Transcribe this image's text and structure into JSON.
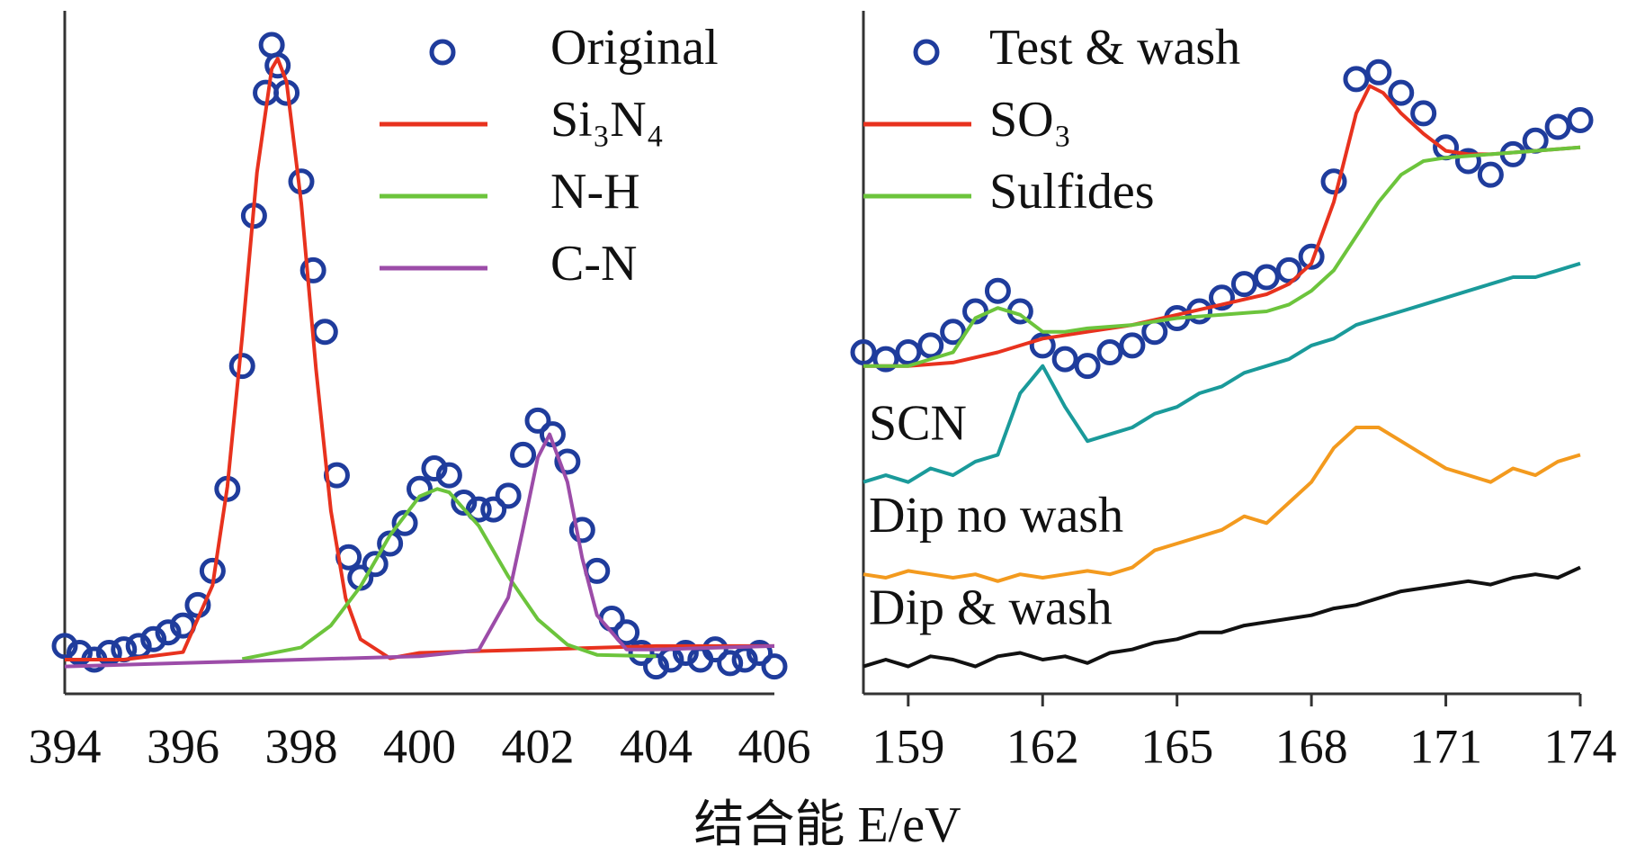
{
  "xlabel": "结合能 E/eV",
  "chart_data": [
    {
      "type": "line",
      "xlim": [
        394,
        406
      ],
      "xticks": [
        394,
        396,
        398,
        400,
        402,
        404,
        406
      ],
      "ylim": [
        0,
        100
      ],
      "grid": false,
      "tick_marks": false,
      "legend": "upper right",
      "series": [
        {
          "name": "Original",
          "color": "#1f3c9c",
          "marker": "circle",
          "x": [
            394,
            394.25,
            394.5,
            394.75,
            395,
            395.25,
            395.5,
            395.75,
            396,
            396.25,
            396.5,
            396.75,
            397,
            397.2,
            397.4,
            397.5,
            397.6,
            397.75,
            398,
            398.2,
            398.4,
            398.6,
            398.8,
            399,
            399.25,
            399.5,
            399.75,
            400,
            400.25,
            400.5,
            400.75,
            401,
            401.25,
            401.5,
            401.75,
            402,
            402.25,
            402.5,
            402.75,
            403,
            403.25,
            403.5,
            403.75,
            404,
            404.25,
            404.5,
            404.75,
            405,
            405.25,
            405.5,
            405.75,
            406
          ],
          "values": [
            7,
            6,
            5,
            6,
            6.5,
            7,
            8,
            9,
            10,
            13,
            18,
            30,
            48,
            70,
            88,
            95,
            92,
            88,
            75,
            62,
            53,
            32,
            20,
            17,
            19,
            22,
            25,
            30,
            33,
            32,
            28,
            27,
            27,
            29,
            35,
            40,
            38,
            34,
            24,
            18,
            11,
            9,
            6,
            4,
            5,
            6,
            5,
            6.5,
            4.5,
            5,
            6,
            4
          ]
        },
        {
          "name": "Si₃N₄",
          "color": "#e8321e",
          "x": [
            394,
            395,
            396,
            396.5,
            396.75,
            397,
            397.25,
            397.5,
            397.6,
            397.75,
            398,
            398.25,
            398.5,
            398.75,
            399,
            399.5,
            400,
            402,
            404,
            406
          ],
          "values": [
            5,
            5,
            6.1,
            15.9,
            30.3,
            52.3,
            76.3,
            91.5,
            93,
            89.6,
            71.8,
            47.5,
            26.8,
            14,
            8,
            5.2,
            6,
            6.5,
            7,
            7
          ]
        },
        {
          "name": "N-H",
          "color": "#6cc43c",
          "x": [
            397,
            398,
            398.5,
            399,
            399.5,
            400,
            400.3,
            400.5,
            401,
            401.5,
            402,
            402.5,
            403,
            404
          ],
          "values": [
            5.1,
            6.8,
            10,
            15.7,
            23.2,
            28.9,
            30,
            29.5,
            24.6,
            17.2,
            10.9,
            7.2,
            5.7,
            5.5
          ]
        },
        {
          "name": "C-N",
          "color": "#9c4ca8",
          "x": [
            394,
            396,
            398,
            400,
            401,
            401.5,
            401.75,
            402,
            402.2,
            402.5,
            402.75,
            403,
            403.5,
            404,
            406
          ],
          "values": [
            4,
            4.5,
            5,
            5.5,
            6.4,
            14.1,
            24.2,
            34.6,
            38,
            31,
            19.9,
            11.5,
            6.5,
            6.5,
            7
          ]
        }
      ]
    },
    {
      "type": "line",
      "xlim": [
        158,
        174
      ],
      "xticks": [
        159,
        162,
        165,
        168,
        171,
        174
      ],
      "ylim": [
        0,
        100
      ],
      "grid": false,
      "tick_marks": true,
      "legend": "upper left",
      "series": [
        {
          "name": "Test & wash",
          "color": "#1f3c9c",
          "marker": "circle",
          "x": [
            158,
            158.5,
            159,
            159.5,
            160,
            160.5,
            161,
            161.5,
            162,
            162.5,
            163,
            163.5,
            164,
            164.5,
            165,
            165.5,
            166,
            166.5,
            167,
            167.5,
            168,
            168.5,
            169,
            169.5,
            170,
            170.5,
            171,
            171.5,
            172,
            172.5,
            173,
            173.5,
            174
          ],
          "values": [
            50,
            49,
            50,
            51,
            53,
            56,
            59,
            56,
            51,
            49,
            48,
            50,
            51,
            53,
            55,
            56,
            58,
            60,
            61,
            62,
            64,
            75,
            90,
            91,
            88,
            85,
            80,
            78,
            76,
            79,
            81,
            83,
            84
          ]
        },
        {
          "name": "SO₃",
          "color": "#e8321e",
          "x": [
            158,
            159,
            160,
            161,
            162,
            163,
            164,
            165,
            166,
            167,
            167.5,
            168,
            168.5,
            169,
            169.3,
            169.6,
            170,
            170.5,
            171,
            171.5,
            172,
            173,
            174
          ],
          "values": [
            48,
            48,
            48.5,
            50,
            52,
            53,
            54,
            55.5,
            57,
            58.5,
            60,
            63,
            72,
            85,
            89,
            88,
            85,
            82,
            79.5,
            79,
            79,
            79.5,
            80
          ]
        },
        {
          "name": "Sulfides",
          "color": "#6cc43c",
          "x": [
            158,
            159,
            160,
            160.5,
            161,
            161.5,
            162,
            162.5,
            163,
            164,
            165,
            166,
            167,
            167.5,
            168,
            168.5,
            169,
            169.5,
            170,
            170.5,
            171,
            172,
            173,
            174
          ],
          "values": [
            48,
            48,
            50,
            55,
            56.5,
            55.5,
            53,
            53,
            53.5,
            54,
            55,
            55.5,
            56,
            57,
            59,
            62,
            67,
            72,
            76,
            78,
            78.5,
            79,
            79.5,
            80
          ]
        },
        {
          "name": "SCN",
          "color": "#1a9a9a",
          "label_inline": true,
          "x": [
            158,
            158.5,
            159,
            159.5,
            160,
            160.5,
            161,
            161.5,
            162,
            162.5,
            163,
            163.5,
            164,
            164.5,
            165,
            165.5,
            166,
            166.5,
            167,
            167.5,
            168,
            168.5,
            169,
            169.5,
            170,
            170.5,
            171,
            171.5,
            172,
            172.5,
            173,
            173.5,
            174
          ],
          "values": [
            31,
            32,
            31,
            33,
            32,
            34,
            35,
            44,
            48,
            42,
            37,
            38,
            39,
            41,
            42,
            44,
            45,
            47,
            48,
            49,
            51,
            52,
            54,
            55,
            56,
            57,
            58,
            59,
            60,
            61,
            61,
            62,
            63
          ]
        },
        {
          "name": "Dip no wash",
          "color": "#f39a1e",
          "label_inline": true,
          "x": [
            158,
            158.5,
            159,
            159.5,
            160,
            160.5,
            161,
            161.5,
            162,
            162.5,
            163,
            163.5,
            164,
            164.5,
            165,
            165.5,
            166,
            166.5,
            167,
            167.5,
            168,
            168.5,
            169,
            169.5,
            170,
            170.5,
            171,
            171.5,
            172,
            172.5,
            173,
            173.5,
            174
          ],
          "values": [
            17.5,
            17,
            18,
            17.5,
            17,
            17.5,
            16.5,
            17.5,
            17,
            17.5,
            18,
            17.5,
            18.5,
            21,
            22,
            23,
            24,
            26,
            25,
            28,
            31,
            36,
            39,
            39,
            37,
            35,
            33,
            32,
            31,
            33,
            32,
            34,
            35
          ]
        },
        {
          "name": "Dip & wash",
          "color": "#111111",
          "label_inline": true,
          "x": [
            158,
            158.5,
            159,
            159.5,
            160,
            160.5,
            161,
            161.5,
            162,
            162.5,
            163,
            163.5,
            164,
            164.5,
            165,
            165.5,
            166,
            166.5,
            167,
            167.5,
            168,
            168.5,
            169,
            169.5,
            170,
            170.5,
            171,
            171.5,
            172,
            172.5,
            173,
            173.5,
            174
          ],
          "values": [
            4,
            5,
            4,
            5.5,
            5,
            4,
            5.5,
            6,
            5,
            5.5,
            4.5,
            6,
            6.5,
            7.5,
            8,
            9,
            9,
            10,
            10.5,
            11,
            11.5,
            12.5,
            13,
            14,
            15,
            15.5,
            16,
            16.5,
            16,
            17,
            17.5,
            17,
            18.5
          ]
        }
      ]
    }
  ]
}
